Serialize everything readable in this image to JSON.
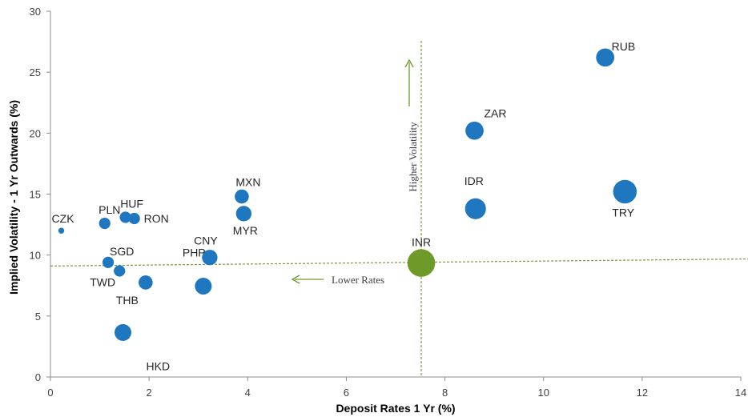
{
  "chart_data": {
    "type": "scatter",
    "title": "",
    "xlabel": "Deposit Rates 1 Yr (%)",
    "ylabel": "Implied Volatility - 1 Yr Outwards (%)",
    "xlim": [
      0,
      14
    ],
    "ylim": [
      0,
      30
    ],
    "xticks": [
      0,
      2,
      4,
      6,
      8,
      10,
      12,
      14
    ],
    "yticks": [
      0,
      5,
      10,
      15,
      20,
      25,
      30
    ],
    "grid": false,
    "legend": "none",
    "colors": {
      "default": "#1f77c0",
      "highlight": "#6e9a2a",
      "guide": "#7f9a3a"
    },
    "points": [
      {
        "label": "CZK",
        "x": 0.22,
        "y": 12.0,
        "size": 1
      },
      {
        "label": "PLN",
        "x": 1.1,
        "y": 12.6,
        "size": 3
      },
      {
        "label": "HUF",
        "x": 1.52,
        "y": 13.1,
        "size": 3
      },
      {
        "label": "RON",
        "x": 1.7,
        "y": 13.0,
        "size": 3
      },
      {
        "label": "SGD",
        "x": 1.17,
        "y": 9.4,
        "size": 3
      },
      {
        "label": "TWD",
        "x": 1.4,
        "y": 8.7,
        "size": 3
      },
      {
        "label": "THB",
        "x": 1.93,
        "y": 7.75,
        "size": 4
      },
      {
        "label": "HKD",
        "x": 1.47,
        "y": 3.65,
        "size": 5
      },
      {
        "label": "PHP",
        "x": 3.1,
        "y": 7.45,
        "size": 5
      },
      {
        "label": "CNY",
        "x": 3.23,
        "y": 9.8,
        "size": 4.5
      },
      {
        "label": "MXN",
        "x": 3.88,
        "y": 14.8,
        "size": 4
      },
      {
        "label": "MYR",
        "x": 3.92,
        "y": 13.4,
        "size": 4.5
      },
      {
        "label": "INR",
        "x": 7.52,
        "y": 9.35,
        "size": 9,
        "highlight": true
      },
      {
        "label": "ZAR",
        "x": 8.6,
        "y": 20.2,
        "size": 5.5
      },
      {
        "label": "IDR",
        "x": 8.62,
        "y": 13.8,
        "size": 6.5
      },
      {
        "label": "RUB",
        "x": 11.25,
        "y": 26.2,
        "size": 5.5
      },
      {
        "label": "TRY",
        "x": 11.65,
        "y": 15.2,
        "size": 7.5
      }
    ],
    "guide_lines": {
      "vertical_x": 7.52,
      "horizontal_y_start": 9.1,
      "horizontal_y_end": 9.35
    },
    "annotations": [
      {
        "text": "Higher Volatility",
        "direction": "up"
      },
      {
        "text": "Lower Rates",
        "direction": "left"
      }
    ]
  }
}
